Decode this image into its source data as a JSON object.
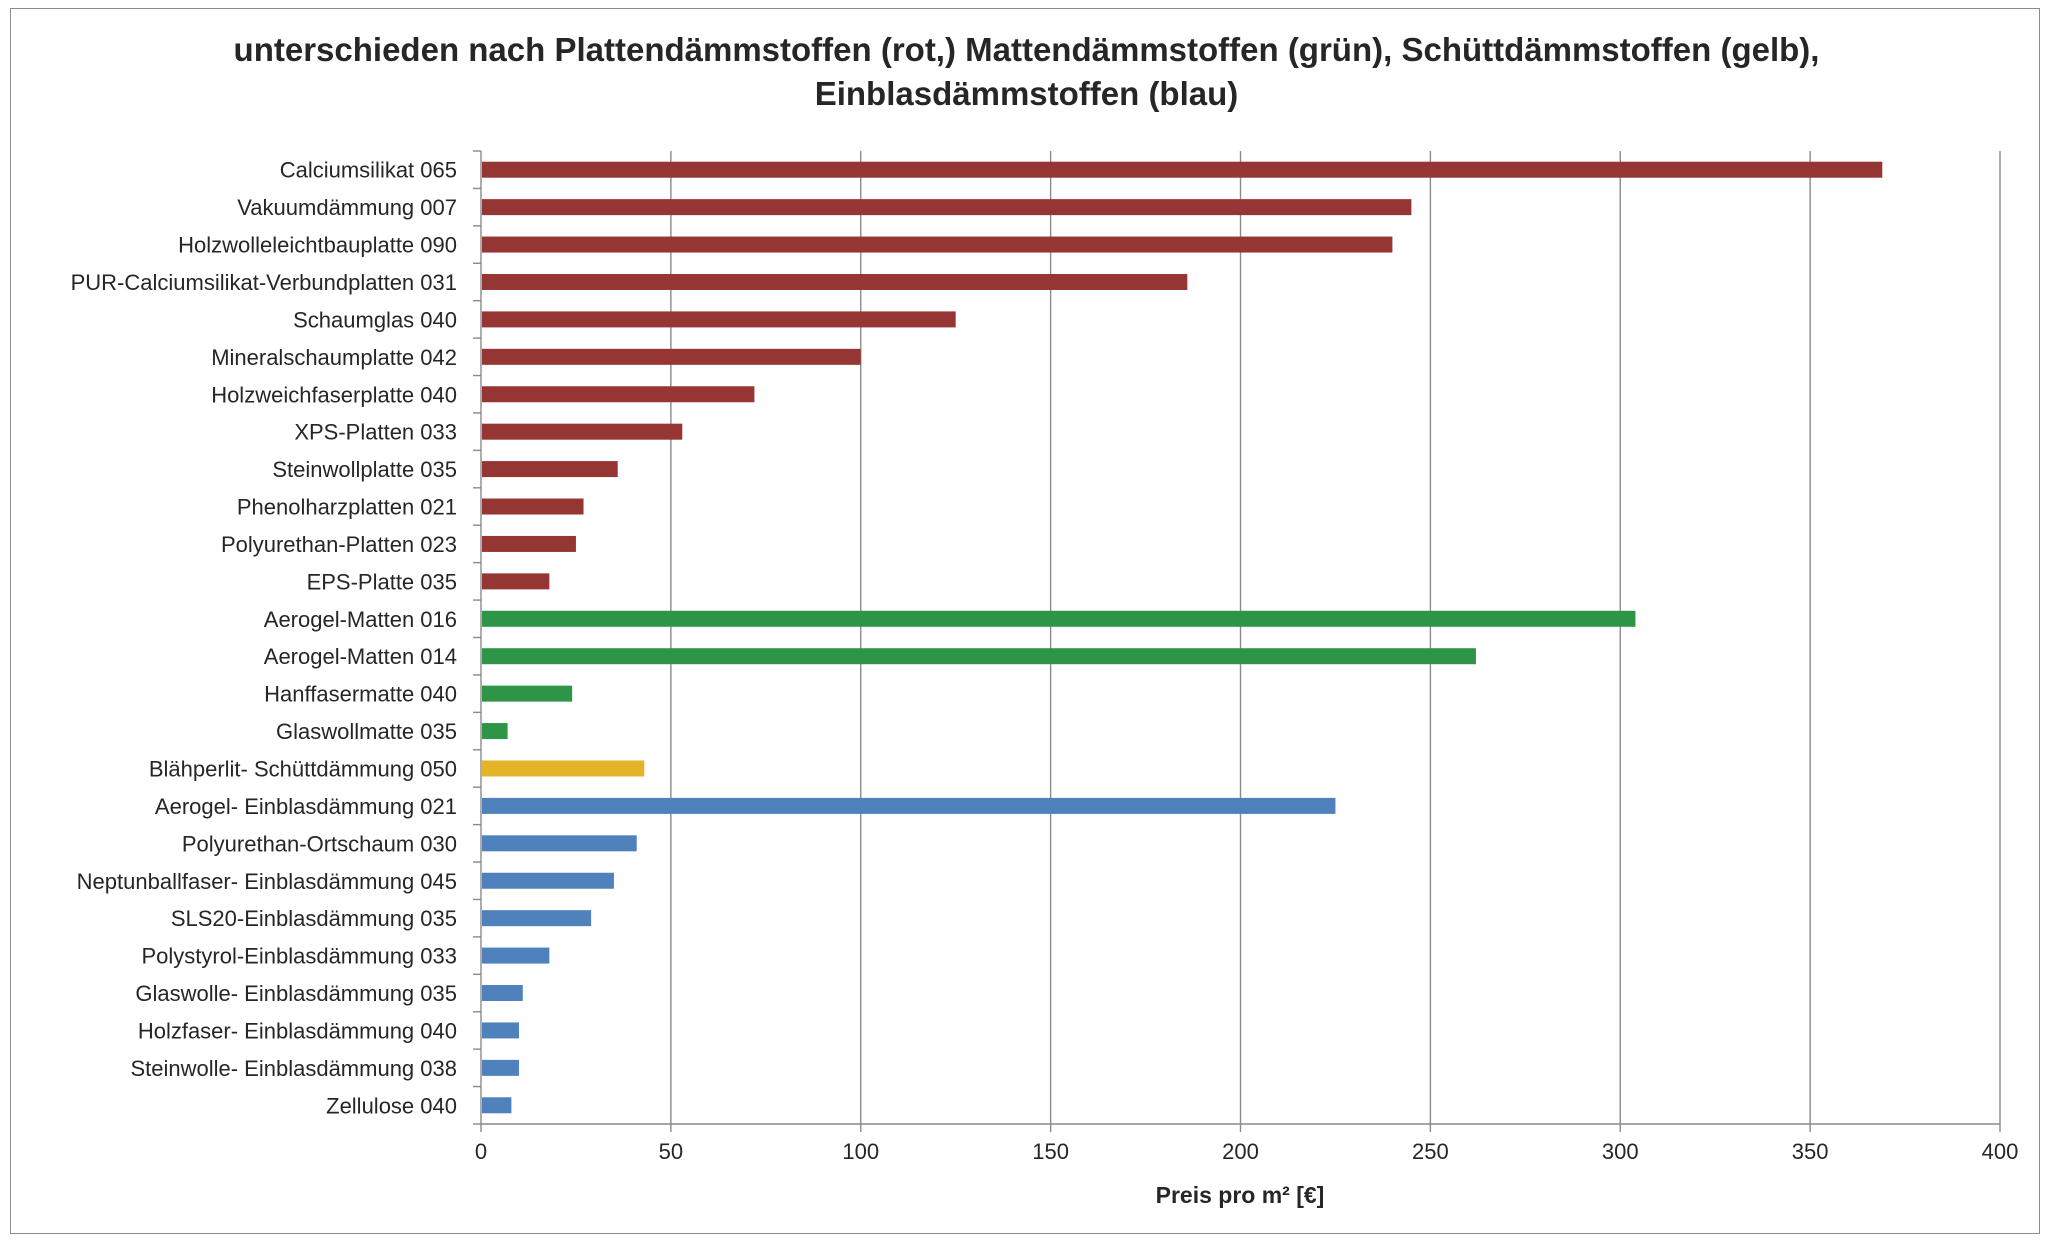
{
  "chart_data": {
    "type": "bar",
    "orientation": "horizontal",
    "title_lines": [
      "unterschieden nach Plattendämmstoffen (rot,) Mattendämmstoffen (grün), Schüttdämmstoffen (gelb),",
      "Einblasdämmstoffen (blau)"
    ],
    "xlabel": "Preis pro m² [€]",
    "ylabel": "",
    "xlim": [
      0,
      400
    ],
    "xticks": [
      0,
      50,
      100,
      150,
      200,
      250,
      300,
      350,
      400
    ],
    "grid": "vertical",
    "legend": "none",
    "group_colors": {
      "rot": "#963634",
      "grün": "#2e9546",
      "gelb": "#e3b428",
      "blau": "#4f81bd"
    },
    "categories": [
      "Calciumsilikat 065",
      "Vakuumdämmung 007",
      "Holzwolleleichtbauplatte 090",
      "PUR-Calciumsilikat-Verbundplatten 031",
      "Schaumglas 040",
      "Mineralschaumplatte 042",
      "Holzweichfaserplatte 040",
      "XPS-Platten 033",
      "Steinwollplatte 035",
      "Phenolharzplatten 021",
      "Polyurethan-Platten 023",
      "EPS-Platte 035",
      "Aerogel-Matten 016",
      "Aerogel-Matten 014",
      "Hanffasermatte 040",
      "Glaswollmatte 035",
      "Blähperlit- Schüttdämmung 050",
      "Aerogel- Einblasdämmung 021",
      "Polyurethan-Ortschaum 030",
      "Neptunballfaser- Einblasdämmung 045",
      "SLS20-Einblasdämmung 035",
      "Polystyrol-Einblasdämmung 033",
      "Glaswolle- Einblasdämmung 035",
      "Holzfaser- Einblasdämmung 040",
      "Steinwolle- Einblasdämmung 038",
      "Zellulose 040"
    ],
    "values": [
      369,
      245,
      240,
      186,
      125,
      100,
      72,
      53,
      36,
      27,
      25,
      18,
      304,
      262,
      24,
      7,
      43,
      225,
      41,
      35,
      29,
      18,
      11,
      10,
      10,
      8
    ],
    "groups": [
      "rot",
      "rot",
      "rot",
      "rot",
      "rot",
      "rot",
      "rot",
      "rot",
      "rot",
      "rot",
      "rot",
      "rot",
      "grün",
      "grün",
      "grün",
      "grün",
      "gelb",
      "blau",
      "blau",
      "blau",
      "blau",
      "blau",
      "blau",
      "blau",
      "blau",
      "blau"
    ]
  }
}
